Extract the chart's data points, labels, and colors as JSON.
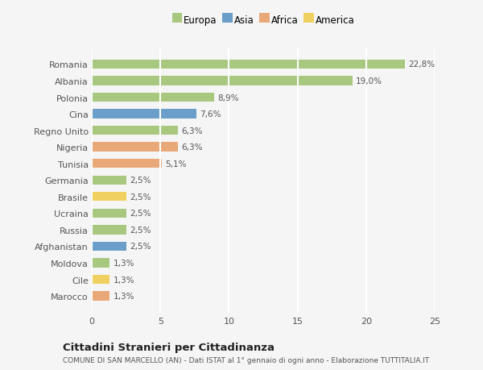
{
  "countries": [
    "Romania",
    "Albania",
    "Polonia",
    "Cina",
    "Regno Unito",
    "Nigeria",
    "Tunisia",
    "Germania",
    "Brasile",
    "Ucraina",
    "Russia",
    "Afghanistan",
    "Moldova",
    "Cile",
    "Marocco"
  ],
  "values": [
    22.8,
    19.0,
    8.9,
    7.6,
    6.3,
    6.3,
    5.1,
    2.5,
    2.5,
    2.5,
    2.5,
    2.5,
    1.3,
    1.3,
    1.3
  ],
  "labels": [
    "22,8%",
    "19,0%",
    "8,9%",
    "7,6%",
    "6,3%",
    "6,3%",
    "5,1%",
    "2,5%",
    "2,5%",
    "2,5%",
    "2,5%",
    "2,5%",
    "1,3%",
    "1,3%",
    "1,3%"
  ],
  "continents": [
    "Europa",
    "Europa",
    "Europa",
    "Asia",
    "Europa",
    "Africa",
    "Africa",
    "Europa",
    "America",
    "Europa",
    "Europa",
    "Asia",
    "Europa",
    "America",
    "Africa"
  ],
  "continent_colors": {
    "Europa": "#a8c880",
    "Asia": "#6b9ec8",
    "Africa": "#e8a878",
    "America": "#f0d060"
  },
  "legend_labels": [
    "Europa",
    "Asia",
    "Africa",
    "America"
  ],
  "title": "Cittadini Stranieri per Cittadinanza",
  "subtitle": "COMUNE DI SAN MARCELLO (AN) - Dati ISTAT al 1° gennaio di ogni anno - Elaborazione TUTTITALIA.IT",
  "xlim": [
    0,
    25
  ],
  "xticks": [
    0,
    5,
    10,
    15,
    20,
    25
  ],
  "background_color": "#f5f5f5",
  "grid_color": "#ffffff",
  "bar_height": 0.55
}
